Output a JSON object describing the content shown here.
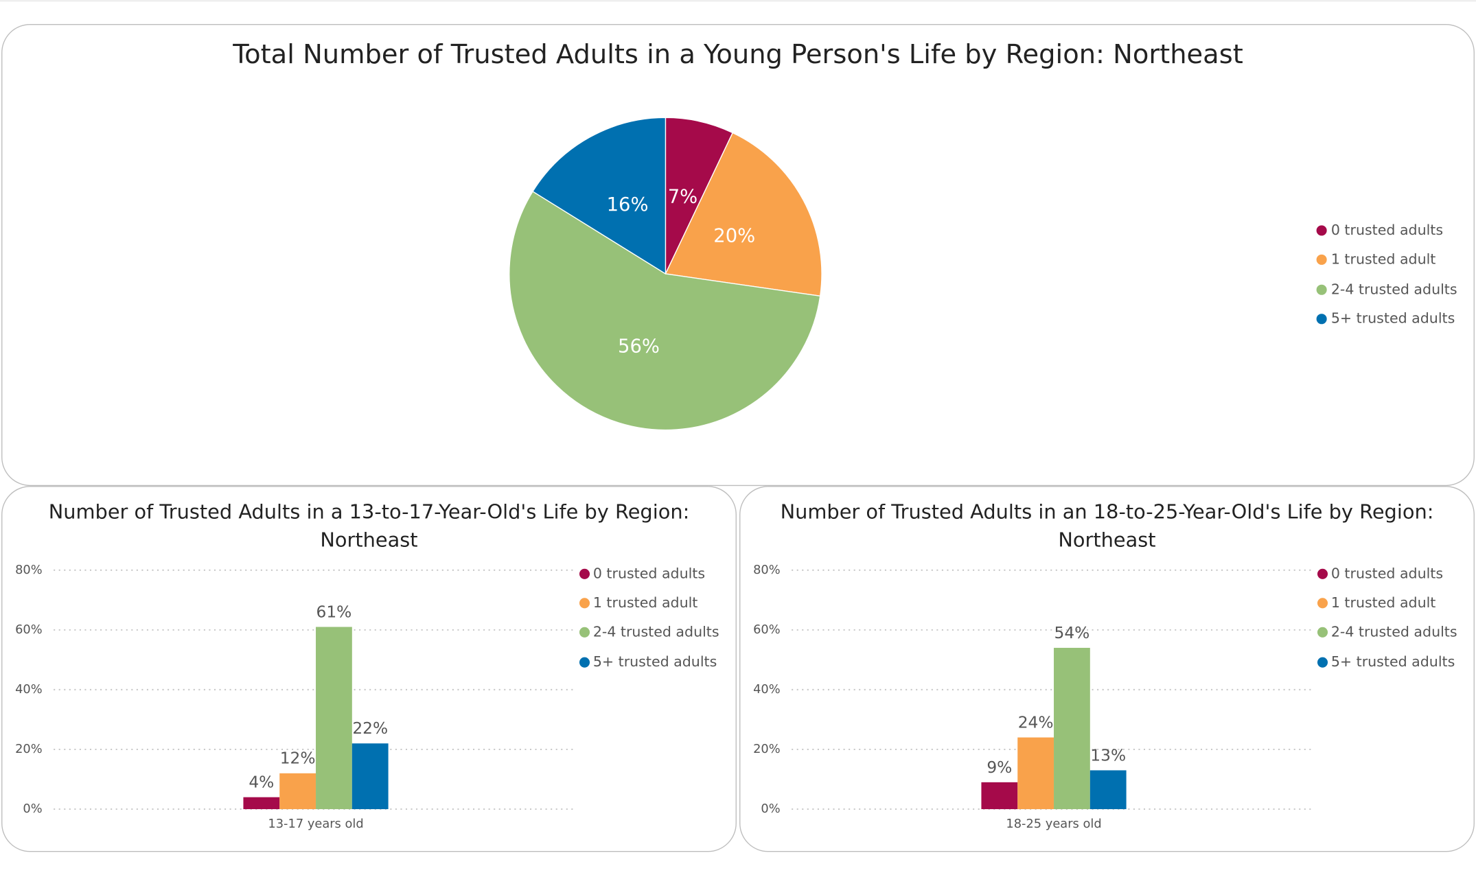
{
  "chart_data": [
    {
      "type": "pie",
      "title": "Total Number of Trusted Adults in a Young Person's Life by Region: Northeast",
      "categories": [
        "0 trusted adults",
        "1 trusted adult",
        "2-4 trusted adults",
        "5+ trusted adults"
      ],
      "values": [
        7,
        20,
        56,
        16
      ],
      "value_labels": [
        "7%",
        "20%",
        "56%",
        "16%"
      ],
      "colors": [
        "#a50a4a",
        "#f9a24b",
        "#97c178",
        "#0070b0"
      ],
      "legend": "right"
    },
    {
      "type": "bar",
      "title": "Number of Trusted Adults in a 13-to-17-Year-Old's Life by Region: Northeast",
      "categories": [
        "13-17 years old"
      ],
      "series": [
        {
          "name": "0 trusted adults",
          "color": "#a50a4a",
          "values": [
            4
          ],
          "value_labels": [
            "4%"
          ]
        },
        {
          "name": "1 trusted adult",
          "color": "#f9a24b",
          "values": [
            12
          ],
          "value_labels": [
            "12%"
          ]
        },
        {
          "name": "2-4 trusted adults",
          "color": "#97c178",
          "values": [
            61
          ],
          "value_labels": [
            "61%"
          ]
        },
        {
          "name": "5+ trusted adults",
          "color": "#0070b0",
          "values": [
            22
          ],
          "value_labels": [
            "22%"
          ]
        }
      ],
      "ylim": [
        0,
        80
      ],
      "yticks": [
        {
          "value": 0,
          "label": "0%"
        },
        {
          "value": 20,
          "label": "20%"
        },
        {
          "value": 40,
          "label": "40%"
        },
        {
          "value": 60,
          "label": "60%"
        },
        {
          "value": 80,
          "label": "80%"
        }
      ],
      "grid": true,
      "legend": "right"
    },
    {
      "type": "bar",
      "title": "Number of Trusted Adults in an 18-to-25-Year-Old's Life by Region: Northeast",
      "categories": [
        "18-25 years old"
      ],
      "series": [
        {
          "name": "0 trusted adults",
          "color": "#a50a4a",
          "values": [
            9
          ],
          "value_labels": [
            "9%"
          ]
        },
        {
          "name": "1 trusted adult",
          "color": "#f9a24b",
          "values": [
            24
          ],
          "value_labels": [
            "24%"
          ]
        },
        {
          "name": "2-4 trusted adults",
          "color": "#97c178",
          "values": [
            54
          ],
          "value_labels": [
            "54%"
          ]
        },
        {
          "name": "5+ trusted adults",
          "color": "#0070b0",
          "values": [
            13
          ],
          "value_labels": [
            "13%"
          ]
        }
      ],
      "ylim": [
        0,
        80
      ],
      "yticks": [
        {
          "value": 0,
          "label": "0%"
        },
        {
          "value": 20,
          "label": "20%"
        },
        {
          "value": 40,
          "label": "40%"
        },
        {
          "value": 60,
          "label": "60%"
        },
        {
          "value": 80,
          "label": "80%"
        }
      ],
      "grid": true,
      "legend": "right"
    }
  ]
}
